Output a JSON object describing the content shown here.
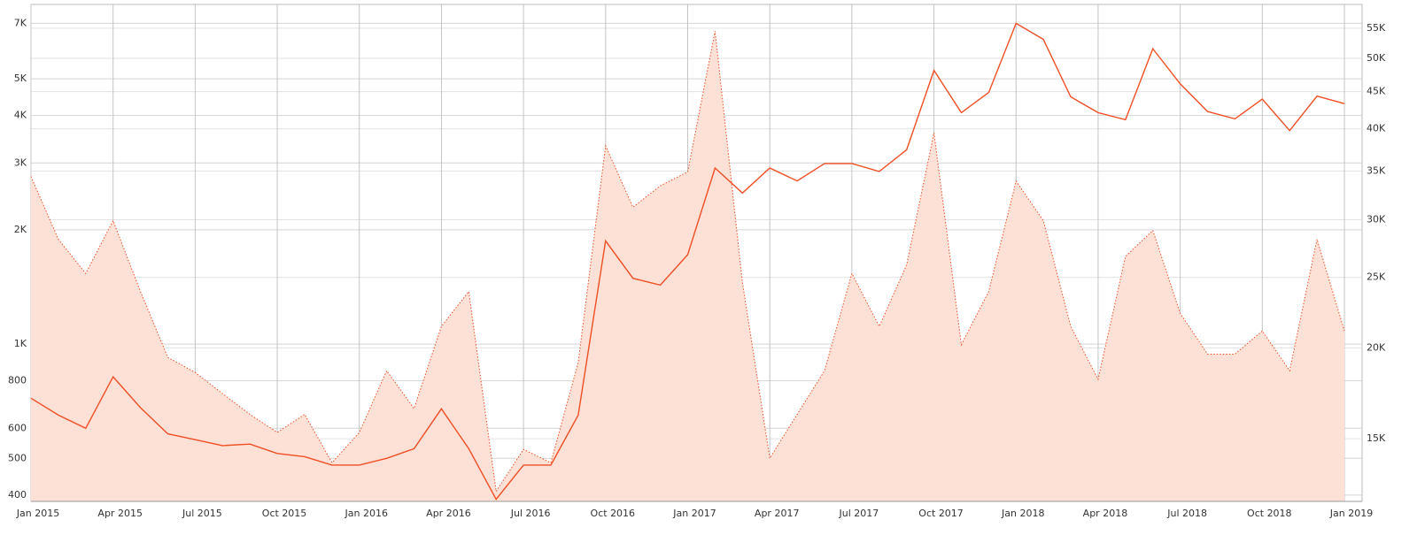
{
  "chart_data": {
    "type": "line",
    "x": [
      "2015-01",
      "2015-02",
      "2015-03",
      "2015-04",
      "2015-05",
      "2015-06",
      "2015-07",
      "2015-08",
      "2015-09",
      "2015-10",
      "2015-11",
      "2015-12",
      "2016-01",
      "2016-02",
      "2016-03",
      "2016-04",
      "2016-05",
      "2016-06",
      "2016-07",
      "2016-08",
      "2016-09",
      "2016-10",
      "2016-11",
      "2016-12",
      "2017-01",
      "2017-02",
      "2017-03",
      "2017-04",
      "2017-05",
      "2017-06",
      "2017-07",
      "2017-08",
      "2017-09",
      "2017-10",
      "2017-11",
      "2017-12",
      "2018-01",
      "2018-02",
      "2018-03",
      "2018-04",
      "2018-05",
      "2018-06",
      "2018-07",
      "2018-08",
      "2018-09",
      "2018-10",
      "2018-11",
      "2018-12",
      "2019-01"
    ],
    "series": [
      {
        "kind": "area",
        "axis": "y2",
        "color": "#f04e23",
        "fill": "#fde0d6",
        "values": [
          34400,
          28200,
          25300,
          29900,
          23900,
          19400,
          18500,
          17300,
          16200,
          15300,
          16200,
          13900,
          15300,
          18600,
          16500,
          21400,
          23900,
          12700,
          14500,
          13900,
          19100,
          37900,
          31200,
          33400,
          34900,
          54500,
          24600,
          14100,
          16200,
          18600,
          25300,
          21400,
          26000,
          39500,
          20200,
          23900,
          33900,
          29900,
          21400,
          18100,
          26700,
          29000,
          22300,
          19600,
          19600,
          21100,
          18600,
          28200,
          21100
        ]
      },
      {
        "kind": "line",
        "axis": "y",
        "color": "#f04e23",
        "values": [
          720,
          650,
          600,
          820,
          680,
          580,
          560,
          540,
          545,
          515,
          505,
          480,
          480,
          500,
          530,
          675,
          530,
          390,
          480,
          480,
          650,
          1870,
          1490,
          1430,
          1720,
          2910,
          2500,
          2910,
          2690,
          2990,
          2990,
          2850,
          3250,
          5260,
          4070,
          4600,
          7000,
          6350,
          4480,
          4070,
          3900,
          6000,
          4850,
          4100,
          3920,
          4420,
          3650,
          4500,
          4300
        ]
      }
    ],
    "xlim": [
      "2015-01",
      "2019-01"
    ],
    "xticks": [
      {
        "value": "2015-01",
        "label": "Jan 2015"
      },
      {
        "value": "2015-04",
        "label": "Apr 2015"
      },
      {
        "value": "2015-07",
        "label": "Jul 2015"
      },
      {
        "value": "2015-10",
        "label": "Oct 2015"
      },
      {
        "value": "2016-01",
        "label": "Jan 2016"
      },
      {
        "value": "2016-04",
        "label": "Apr 2016"
      },
      {
        "value": "2016-07",
        "label": "Jul 2016"
      },
      {
        "value": "2016-10",
        "label": "Oct 2016"
      },
      {
        "value": "2017-01",
        "label": "Jan 2017"
      },
      {
        "value": "2017-04",
        "label": "Apr 2017"
      },
      {
        "value": "2017-07",
        "label": "Jul 2017"
      },
      {
        "value": "2017-10",
        "label": "Oct 2017"
      },
      {
        "value": "2018-01",
        "label": "Jan 2018"
      },
      {
        "value": "2018-04",
        "label": "Apr 2018"
      },
      {
        "value": "2018-07",
        "label": "Jul 2018"
      },
      {
        "value": "2018-10",
        "label": "Oct 2018"
      },
      {
        "value": "2019-01",
        "label": "Jan 2019"
      }
    ],
    "ylim": [
      385,
      7850
    ],
    "log_y": true,
    "yticks": [
      400,
      500,
      600,
      800,
      {
        "value": 1000,
        "label": "1K"
      },
      {
        "value": 2000,
        "label": "2K"
      },
      {
        "value": 3000,
        "label": "3K"
      },
      {
        "value": 4000,
        "label": "4K"
      },
      {
        "value": 5000,
        "label": "5K"
      },
      {
        "value": 7000,
        "label": "7K"
      }
    ],
    "y2lim": [
      12300,
      59300
    ],
    "log_y2": true,
    "y2ticks": [
      {
        "value": 15000,
        "label": "15K"
      },
      {
        "value": 20000,
        "label": "20K"
      },
      {
        "value": 25000,
        "label": "25K"
      },
      {
        "value": 30000,
        "label": "30K"
      },
      {
        "value": 35000,
        "label": "35K"
      },
      {
        "value": 40000,
        "label": "40K"
      },
      {
        "value": 45000,
        "label": "45K"
      },
      {
        "value": 50000,
        "label": "50K"
      },
      {
        "value": 55000,
        "label": "55K"
      }
    ],
    "grid": true
  }
}
